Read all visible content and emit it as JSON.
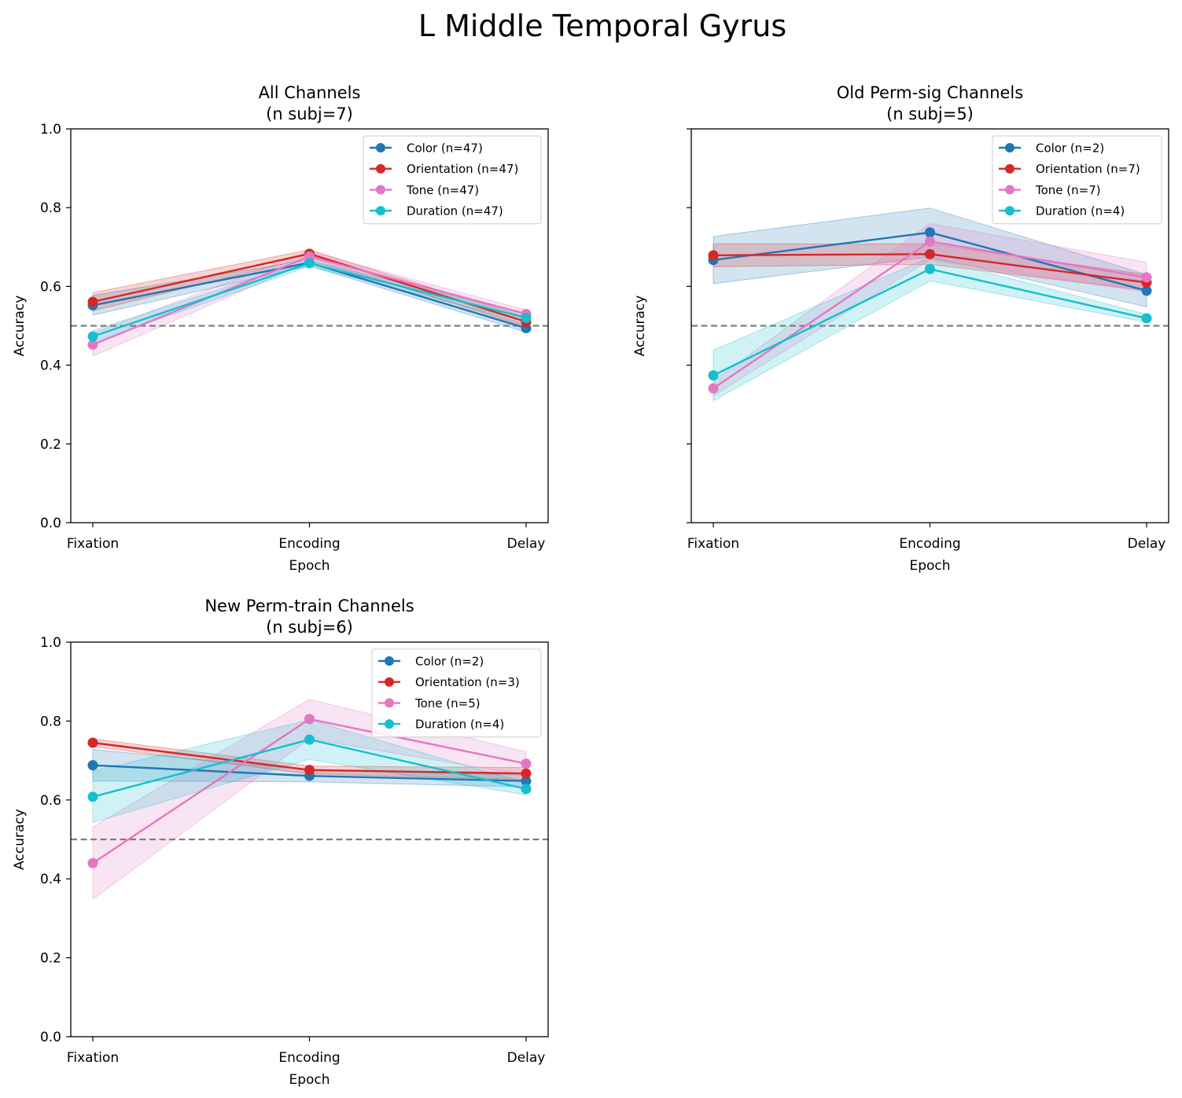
{
  "figure_title": "L Middle Temporal Gyrus",
  "series_colors": {
    "Color": "#1f77b4",
    "Orientation": "#d62728",
    "Tone": "#e377c2",
    "Duration": "#17becf"
  },
  "chance_level": 0.5,
  "chart_data": [
    {
      "type": "line",
      "title": "All Channels",
      "subtitle": "(n subj=7)",
      "xlabel": "Epoch",
      "ylabel": "Accuracy",
      "categories": [
        "Fixation",
        "Encoding",
        "Delay"
      ],
      "ylim": [
        0,
        1
      ],
      "yticks": [
        "0.0",
        "0.2",
        "0.4",
        "0.6",
        "0.8",
        "1.0"
      ],
      "show_yticklabels": true,
      "legend_position": "top-right",
      "series": [
        {
          "key": "Color",
          "name": "Color (n=47)",
          "values": [
            0.552,
            0.66,
            0.494
          ],
          "lower": [
            0.527,
            0.652,
            0.484
          ],
          "upper": [
            0.577,
            0.668,
            0.504
          ]
        },
        {
          "key": "Orientation",
          "name": "Orientation (n=47)",
          "values": [
            0.561,
            0.683,
            0.51
          ],
          "lower": [
            0.538,
            0.673,
            0.498
          ],
          "upper": [
            0.584,
            0.693,
            0.522
          ]
        },
        {
          "key": "Tone",
          "name": "Tone (n=47)",
          "values": [
            0.452,
            0.676,
            0.53
          ],
          "lower": [
            0.423,
            0.663,
            0.52
          ],
          "upper": [
            0.481,
            0.689,
            0.54
          ]
        },
        {
          "key": "Duration",
          "name": "Duration (n=47)",
          "values": [
            0.473,
            0.659,
            0.52
          ],
          "lower": [
            0.458,
            0.651,
            0.51
          ],
          "upper": [
            0.488,
            0.667,
            0.53
          ]
        }
      ]
    },
    {
      "type": "line",
      "title": "Old Perm-sig Channels",
      "subtitle": "(n subj=5)",
      "xlabel": "Epoch",
      "ylabel": "Accuracy",
      "categories": [
        "Fixation",
        "Encoding",
        "Delay"
      ],
      "ylim": [
        0,
        1
      ],
      "yticks": [
        "0.0",
        "0.2",
        "0.4",
        "0.6",
        "0.8",
        "1.0"
      ],
      "show_yticklabels": false,
      "legend_position": "top-right",
      "series": [
        {
          "key": "Color",
          "name": "Color (n=2)",
          "values": [
            0.667,
            0.737,
            0.589
          ],
          "lower": [
            0.607,
            0.675,
            0.548
          ],
          "upper": [
            0.727,
            0.799,
            0.63
          ]
        },
        {
          "key": "Orientation",
          "name": "Orientation (n=7)",
          "values": [
            0.679,
            0.682,
            0.61
          ],
          "lower": [
            0.65,
            0.656,
            0.59
          ],
          "upper": [
            0.708,
            0.708,
            0.63
          ]
        },
        {
          "key": "Tone",
          "name": "Tone (n=7)",
          "values": [
            0.341,
            0.714,
            0.623
          ],
          "lower": [
            0.322,
            0.668,
            0.585
          ],
          "upper": [
            0.36,
            0.76,
            0.661
          ]
        },
        {
          "key": "Duration",
          "name": "Duration (n=4)",
          "values": [
            0.374,
            0.644,
            0.519
          ],
          "lower": [
            0.31,
            0.614,
            0.509
          ],
          "upper": [
            0.438,
            0.674,
            0.529
          ]
        }
      ]
    },
    {
      "type": "line",
      "title": "New Perm-train Channels",
      "subtitle": "(n subj=6)",
      "xlabel": "Epoch",
      "ylabel": "Accuracy",
      "categories": [
        "Fixation",
        "Encoding",
        "Delay"
      ],
      "ylim": [
        0,
        1
      ],
      "yticks": [
        "0.0",
        "0.2",
        "0.4",
        "0.6",
        "0.8",
        "1.0"
      ],
      "show_yticklabels": true,
      "legend_position": "top-right",
      "series": [
        {
          "key": "Color",
          "name": "Color (n=2)",
          "values": [
            0.688,
            0.661,
            0.648
          ],
          "lower": [
            0.648,
            0.646,
            0.633
          ],
          "upper": [
            0.728,
            0.676,
            0.663
          ]
        },
        {
          "key": "Orientation",
          "name": "Orientation (n=3)",
          "values": [
            0.745,
            0.676,
            0.667
          ],
          "lower": [
            0.735,
            0.666,
            0.652
          ],
          "upper": [
            0.755,
            0.686,
            0.682
          ]
        },
        {
          "key": "Tone",
          "name": "Tone (n=5)",
          "values": [
            0.44,
            0.805,
            0.692
          ],
          "lower": [
            0.348,
            0.755,
            0.662
          ],
          "upper": [
            0.532,
            0.855,
            0.722
          ]
        },
        {
          "key": "Duration",
          "name": "Duration (n=4)",
          "values": [
            0.608,
            0.753,
            0.628
          ],
          "lower": [
            0.543,
            0.703,
            0.613
          ],
          "upper": [
            0.673,
            0.803,
            0.643
          ]
        }
      ]
    }
  ]
}
